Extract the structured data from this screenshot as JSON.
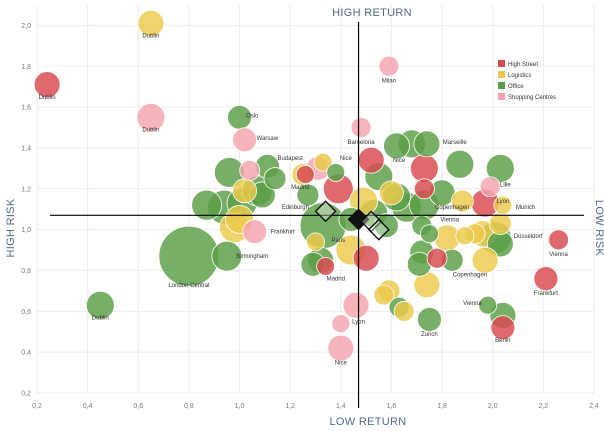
{
  "quadrants": {
    "top": "HIGH RETURN",
    "bottom": "LOW RETURN",
    "left": "HIGH RISK",
    "right": "LOW RISK"
  },
  "legend": [
    {
      "label": "High Street",
      "color": "#d9484f"
    },
    {
      "label": "Logistics",
      "color": "#ecc94b"
    },
    {
      "label": "Office",
      "color": "#5a9e45"
    },
    {
      "label": "Shopping Centres",
      "color": "#f4a3ae"
    }
  ],
  "chart_data": {
    "type": "scatter",
    "xlim": [
      0.2,
      2.4
    ],
    "ylim": [
      0.2,
      2.1
    ],
    "x_ticks": [
      0.2,
      0.4,
      0.6,
      0.8,
      1.0,
      1.2,
      1.4,
      1.6,
      1.8,
      2.0,
      2.2,
      2.4
    ],
    "y_ticks": [
      0.2,
      0.4,
      0.6,
      0.8,
      1.0,
      1.2,
      1.4,
      1.6,
      1.8,
      2.0
    ],
    "x_tick_labels": [
      "0,2",
      "0,4",
      "0,6",
      "0,8",
      "1,0",
      "1,2",
      "1,4",
      "1,6",
      "1,8",
      "2,0",
      "2,2",
      "2,4"
    ],
    "y_tick_labels": [
      "0,2",
      "0,4",
      "0,6",
      "0,8",
      "1,0",
      "1,2",
      "1,4",
      "1,6",
      "1,8",
      "2,0"
    ],
    "crosshair": {
      "x": 1.47,
      "y": 1.07
    },
    "diamonds": [
      {
        "x": 1.34,
        "y": 1.09,
        "style": "outline"
      },
      {
        "x": 1.47,
        "y": 1.05,
        "style": "filled"
      },
      {
        "x": 1.52,
        "y": 1.04,
        "style": "outline"
      },
      {
        "x": 1.55,
        "y": 1.0,
        "style": "outline"
      }
    ],
    "points": [
      {
        "x": 0.24,
        "y": 1.71,
        "r": 1.3,
        "segment": "High Street",
        "label": "Dublin"
      },
      {
        "x": 0.65,
        "y": 2.01,
        "r": 1.3,
        "segment": "Logistics",
        "label": "Dublin"
      },
      {
        "x": 0.65,
        "y": 1.55,
        "r": 1.4,
        "segment": "Shopping Centres",
        "label": "Dublin"
      },
      {
        "x": 0.45,
        "y": 0.63,
        "r": 1.4,
        "segment": "Office",
        "label": "Dublin"
      },
      {
        "x": 0.8,
        "y": 0.87,
        "r": 3.0,
        "segment": "Office",
        "label": "London Central"
      },
      {
        "x": 0.96,
        "y": 1.28,
        "r": 1.5,
        "segment": "Office",
        "label": ""
      },
      {
        "x": 0.94,
        "y": 1.11,
        "r": 1.7,
        "segment": "Office",
        "label": ""
      },
      {
        "x": 0.87,
        "y": 1.12,
        "r": 1.5,
        "segment": "Office",
        "label": ""
      },
      {
        "x": 1.01,
        "y": 1.13,
        "r": 1.5,
        "segment": "Office",
        "label": ""
      },
      {
        "x": 1.0,
        "y": 1.05,
        "r": 1.4,
        "segment": "Logistics",
        "label": ""
      },
      {
        "x": 0.98,
        "y": 1.01,
        "r": 1.5,
        "segment": "Logistics",
        "label": ""
      },
      {
        "x": 1.02,
        "y": 1.19,
        "r": 1.2,
        "segment": "Logistics",
        "label": ""
      },
      {
        "x": 0.95,
        "y": 0.87,
        "r": 1.5,
        "segment": "Office",
        "label": "Birmingham"
      },
      {
        "x": 1.06,
        "y": 0.99,
        "r": 1.2,
        "segment": "Shopping Centres",
        "label": "Frankfurt"
      },
      {
        "x": 1.0,
        "y": 1.55,
        "r": 1.2,
        "segment": "Office",
        "label": "Oslo"
      },
      {
        "x": 1.02,
        "y": 1.44,
        "r": 1.2,
        "segment": "Shopping Centres",
        "label": "Warsaw"
      },
      {
        "x": 1.04,
        "y": 1.29,
        "r": 1.0,
        "segment": "Shopping Centres",
        "label": ""
      },
      {
        "x": 1.07,
        "y": 1.19,
        "r": 1.5,
        "segment": "Office",
        "label": ""
      },
      {
        "x": 1.11,
        "y": 1.31,
        "r": 1.2,
        "segment": "Office",
        "label": ""
      },
      {
        "x": 1.14,
        "y": 1.25,
        "r": 1.1,
        "segment": "Office",
        "label": ""
      },
      {
        "x": 1.09,
        "y": 1.17,
        "r": 1.3,
        "segment": "Office",
        "label": ""
      },
      {
        "x": 1.25,
        "y": 1.27,
        "r": 1.1,
        "segment": "Logistics",
        "label": "Budapest"
      },
      {
        "x": 1.26,
        "y": 1.27,
        "r": 0.9,
        "segment": "High Street",
        "label": ""
      },
      {
        "x": 1.27,
        "y": 1.17,
        "r": 1.1,
        "segment": "Office",
        "label": "Madrid"
      },
      {
        "x": 1.3,
        "y": 0.94,
        "r": 0.9,
        "segment": "Logistics",
        "label": ""
      },
      {
        "x": 1.33,
        "y": 1.02,
        "r": 2.3,
        "segment": "Office",
        "label": ""
      },
      {
        "x": 1.31,
        "y": 1.3,
        "r": 1.2,
        "segment": "Shopping Centres",
        "label": ""
      },
      {
        "x": 1.33,
        "y": 1.33,
        "r": 0.9,
        "segment": "Logistics",
        "label": ""
      },
      {
        "x": 1.38,
        "y": 1.28,
        "r": 0.9,
        "segment": "Office",
        "label": "Nice"
      },
      {
        "x": 1.39,
        "y": 1.2,
        "r": 1.5,
        "segment": "High Street",
        "label": ""
      },
      {
        "x": 1.34,
        "y": 0.82,
        "r": 0.9,
        "segment": "High Street",
        "label": "Madrid"
      },
      {
        "x": 1.29,
        "y": 0.83,
        "r": 1.2,
        "segment": "Office",
        "label": ""
      },
      {
        "x": 1.32,
        "y": 0.85,
        "r": 1.3,
        "segment": "Office",
        "label": ""
      },
      {
        "x": 1.4,
        "y": 0.42,
        "r": 1.3,
        "segment": "Shopping Centres",
        "label": "Nice"
      },
      {
        "x": 1.4,
        "y": 0.54,
        "r": 0.9,
        "segment": "Shopping Centres",
        "label": "Lyon"
      },
      {
        "x": 1.46,
        "y": 0.63,
        "r": 1.3,
        "segment": "Shopping Centres",
        "label": ""
      },
      {
        "x": 1.44,
        "y": 0.9,
        "r": 1.5,
        "segment": "Logistics",
        "label": "Paris"
      },
      {
        "x": 1.5,
        "y": 0.86,
        "r": 1.3,
        "segment": "High Street",
        "label": ""
      },
      {
        "x": 1.48,
        "y": 1.5,
        "r": 1.0,
        "segment": "Shopping Centres",
        "label": "Barcelona"
      },
      {
        "x": 1.52,
        "y": 1.34,
        "r": 1.3,
        "segment": "High Street",
        "label": ""
      },
      {
        "x": 1.55,
        "y": 1.26,
        "r": 1.4,
        "segment": "Office",
        "label": ""
      },
      {
        "x": 1.59,
        "y": 1.8,
        "r": 1.0,
        "segment": "Shopping Centres",
        "label": "Milan"
      },
      {
        "x": 1.62,
        "y": 1.41,
        "r": 1.3,
        "segment": "Office",
        "label": "Nice"
      },
      {
        "x": 1.68,
        "y": 1.42,
        "r": 1.4,
        "segment": "Office",
        "label": ""
      },
      {
        "x": 1.74,
        "y": 1.42,
        "r": 1.3,
        "segment": "Office",
        "label": "Marseille"
      },
      {
        "x": 1.73,
        "y": 1.3,
        "r": 1.4,
        "segment": "High Street",
        "label": ""
      },
      {
        "x": 1.73,
        "y": 1.2,
        "r": 1.0,
        "segment": "High Street",
        "label": ""
      },
      {
        "x": 1.6,
        "y": 1.18,
        "r": 1.2,
        "segment": "Logistics",
        "label": ""
      },
      {
        "x": 1.62,
        "y": 1.16,
        "r": 1.4,
        "segment": "Office",
        "label": ""
      },
      {
        "x": 1.66,
        "y": 1.11,
        "r": 1.5,
        "segment": "Office",
        "label": ""
      },
      {
        "x": 1.73,
        "y": 1.12,
        "r": 1.5,
        "segment": "Office",
        "label": ""
      },
      {
        "x": 1.8,
        "y": 1.18,
        "r": 1.3,
        "segment": "Office",
        "label": ""
      },
      {
        "x": 1.87,
        "y": 1.32,
        "r": 1.4,
        "segment": "Office",
        "label": ""
      },
      {
        "x": 1.88,
        "y": 1.14,
        "r": 1.1,
        "segment": "Logistics",
        "label": ""
      },
      {
        "x": 1.97,
        "y": 1.13,
        "r": 1.4,
        "segment": "High Street",
        "label": "Lyon"
      },
      {
        "x": 1.99,
        "y": 1.21,
        "r": 1.0,
        "segment": "Shopping Centres",
        "label": "Lille"
      },
      {
        "x": 2.03,
        "y": 1.3,
        "r": 1.4,
        "segment": "Office",
        "label": ""
      },
      {
        "x": 2.04,
        "y": 1.12,
        "r": 0.9,
        "segment": "Logistics",
        "label": "Munich"
      },
      {
        "x": 1.72,
        "y": 1.02,
        "r": 1.0,
        "segment": "Office",
        "label": "Copenhagen"
      },
      {
        "x": 1.75,
        "y": 0.98,
        "r": 0.9,
        "segment": "Office",
        "label": ""
      },
      {
        "x": 1.82,
        "y": 0.96,
        "r": 1.3,
        "segment": "Logistics",
        "label": "Vienna"
      },
      {
        "x": 1.89,
        "y": 0.97,
        "r": 0.9,
        "segment": "Logistics",
        "label": ""
      },
      {
        "x": 1.93,
        "y": 0.98,
        "r": 1.0,
        "segment": "Logistics",
        "label": ""
      },
      {
        "x": 1.96,
        "y": 0.98,
        "r": 1.3,
        "segment": "Logistics",
        "label": ""
      },
      {
        "x": 2.03,
        "y": 1.03,
        "r": 1.1,
        "segment": "Logistics",
        "label": ""
      },
      {
        "x": 2.01,
        "y": 0.96,
        "r": 1.6,
        "segment": "Office",
        "label": "Düsseldorf"
      },
      {
        "x": 2.03,
        "y": 0.93,
        "r": 1.3,
        "segment": "Office",
        "label": ""
      },
      {
        "x": 2.26,
        "y": 0.95,
        "r": 1.0,
        "segment": "High Street",
        "label": "Vienna"
      },
      {
        "x": 1.97,
        "y": 0.85,
        "r": 1.3,
        "segment": "Logistics",
        "label": ""
      },
      {
        "x": 1.78,
        "y": 0.86,
        "r": 1.0,
        "segment": "High Street",
        "label": ""
      },
      {
        "x": 1.84,
        "y": 0.85,
        "r": 1.1,
        "segment": "Office",
        "label": "Copenhagen"
      },
      {
        "x": 1.72,
        "y": 0.89,
        "r": 1.2,
        "segment": "Office",
        "label": ""
      },
      {
        "x": 1.71,
        "y": 0.83,
        "r": 1.2,
        "segment": "Office",
        "label": ""
      },
      {
        "x": 1.74,
        "y": 0.73,
        "r": 1.3,
        "segment": "Logistics",
        "label": ""
      },
      {
        "x": 1.59,
        "y": 0.7,
        "r": 1.1,
        "segment": "Logistics",
        "label": ""
      },
      {
        "x": 1.57,
        "y": 0.68,
        "r": 1.0,
        "segment": "Logistics",
        "label": ""
      },
      {
        "x": 1.63,
        "y": 0.62,
        "r": 1.0,
        "segment": "Office",
        "label": ""
      },
      {
        "x": 1.65,
        "y": 0.6,
        "r": 1.0,
        "segment": "Logistics",
        "label": ""
      },
      {
        "x": 1.75,
        "y": 0.56,
        "r": 1.2,
        "segment": "Office",
        "label": "Zurich"
      },
      {
        "x": 1.98,
        "y": 0.63,
        "r": 0.9,
        "segment": "Office",
        "label": "Vienna"
      },
      {
        "x": 2.04,
        "y": 0.58,
        "r": 1.3,
        "segment": "Office",
        "label": ""
      },
      {
        "x": 2.04,
        "y": 0.52,
        "r": 1.2,
        "segment": "High Street",
        "label": "Berlin"
      },
      {
        "x": 2.21,
        "y": 0.76,
        "r": 1.2,
        "segment": "High Street",
        "label": "Frankfurt"
      },
      {
        "x": 1.53,
        "y": 1.08,
        "r": 1.4,
        "segment": "Office",
        "label": ""
      },
      {
        "x": 1.49,
        "y": 1.14,
        "r": 1.4,
        "segment": "Logistics",
        "label": ""
      },
      {
        "x": 1.58,
        "y": 1.02,
        "r": 1.2,
        "segment": "Office",
        "label": ""
      },
      {
        "x": 1.44,
        "y": 1.05,
        "r": 1.2,
        "segment": "Office",
        "label": ""
      }
    ],
    "point_labels": [
      {
        "text": "Dublin",
        "x": 0.24,
        "y": 1.64
      },
      {
        "text": "Dublin",
        "x": 0.65,
        "y": 1.94
      },
      {
        "text": "Dublin",
        "x": 0.65,
        "y": 1.48
      },
      {
        "text": "Dublin",
        "x": 0.45,
        "y": 0.56
      },
      {
        "text": "London Central",
        "x": 0.8,
        "y": 0.72
      },
      {
        "text": "Birmingham",
        "x": 1.05,
        "y": 0.86
      },
      {
        "text": "Frankfurt",
        "x": 1.17,
        "y": 0.98
      },
      {
        "text": "Oslo",
        "x": 1.05,
        "y": 1.55
      },
      {
        "text": "Warsaw",
        "x": 1.11,
        "y": 1.44
      },
      {
        "text": "Budapest",
        "x": 1.2,
        "y": 1.34
      },
      {
        "text": "Madrid",
        "x": 1.24,
        "y": 1.2
      },
      {
        "text": "Edinburgh",
        "x": 1.22,
        "y": 1.1
      },
      {
        "text": "Paris",
        "x": 1.39,
        "y": 0.94
      },
      {
        "text": "Madrid",
        "x": 1.38,
        "y": 0.75
      },
      {
        "text": "Nice",
        "x": 1.4,
        "y": 0.34
      },
      {
        "text": "Lyon",
        "x": 1.47,
        "y": 0.54
      },
      {
        "text": "Barcelona",
        "x": 1.48,
        "y": 1.42
      },
      {
        "text": "Nice",
        "x": 1.42,
        "y": 1.34
      },
      {
        "text": "Milan",
        "x": 1.59,
        "y": 1.72
      },
      {
        "text": "Nice",
        "x": 1.63,
        "y": 1.33
      },
      {
        "text": "Marseille",
        "x": 1.85,
        "y": 1.42
      },
      {
        "text": "Lille",
        "x": 2.05,
        "y": 1.21
      },
      {
        "text": "Lyon",
        "x": 2.04,
        "y": 1.13
      },
      {
        "text": "Munich",
        "x": 2.13,
        "y": 1.1
      },
      {
        "text": "Copenhagen",
        "x": 1.84,
        "y": 1.1
      },
      {
        "text": "Vienna",
        "x": 1.83,
        "y": 1.04
      },
      {
        "text": "Düsseldorf",
        "x": 2.14,
        "y": 0.96
      },
      {
        "text": "Vienna",
        "x": 2.26,
        "y": 0.87
      },
      {
        "text": "Copenhagen",
        "x": 1.91,
        "y": 0.77
      },
      {
        "text": "Vienna",
        "x": 1.92,
        "y": 0.63
      },
      {
        "text": "Zurich",
        "x": 1.75,
        "y": 0.48
      },
      {
        "text": "Berlin",
        "x": 2.04,
        "y": 0.45
      },
      {
        "text": "Frankfurt",
        "x": 2.21,
        "y": 0.68
      }
    ]
  }
}
